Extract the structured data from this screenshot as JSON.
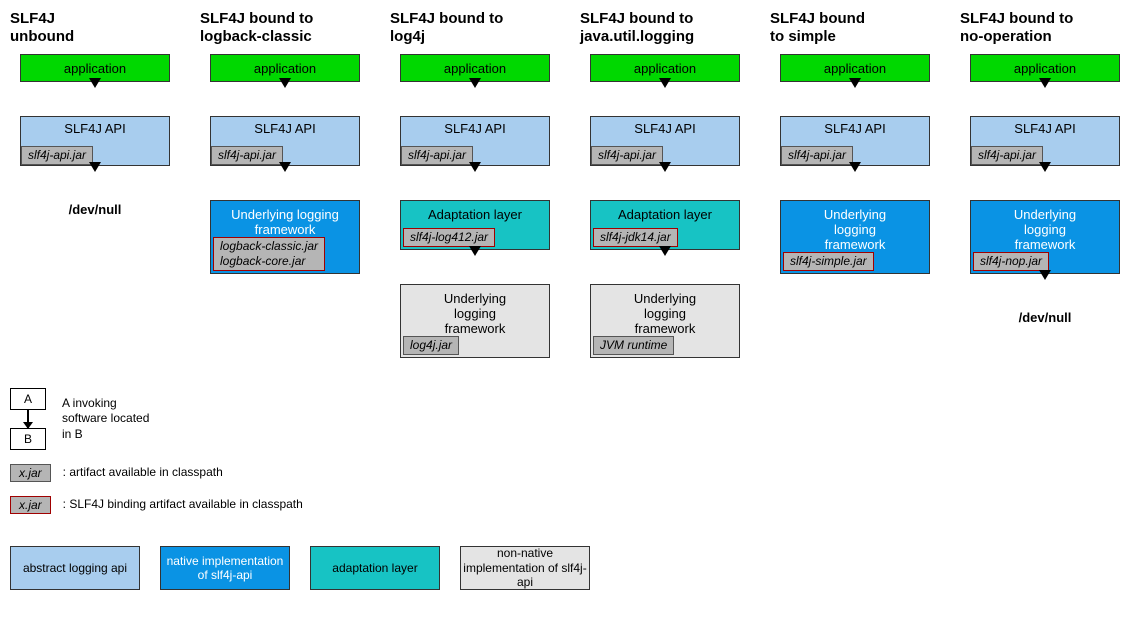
{
  "columns": [
    {
      "title": "SLF4J\nunbound",
      "nodes": [
        {
          "type": "app",
          "label": "application"
        },
        {
          "type": "arrow"
        },
        {
          "type": "api",
          "label": "SLF4J API",
          "jar": "slf4j-api.jar",
          "binding": false
        },
        {
          "type": "arrow"
        },
        {
          "type": "devnull",
          "label": "/dev/null"
        }
      ]
    },
    {
      "title": "SLF4J bound to\nlogback-classic",
      "nodes": [
        {
          "type": "app",
          "label": "application"
        },
        {
          "type": "arrow"
        },
        {
          "type": "api",
          "label": "SLF4J API",
          "jar": "slf4j-api.jar",
          "binding": false
        },
        {
          "type": "arrow"
        },
        {
          "type": "native",
          "label": "Underlying logging\nframework",
          "jar": "logback-classic.jar\nlogback-core.jar",
          "binding": true
        }
      ]
    },
    {
      "title": "SLF4J bound to\nlog4j",
      "nodes": [
        {
          "type": "app",
          "label": "application"
        },
        {
          "type": "arrow"
        },
        {
          "type": "api",
          "label": "SLF4J API",
          "jar": "slf4j-api.jar",
          "binding": false
        },
        {
          "type": "arrow"
        },
        {
          "type": "adapt",
          "label": "Adaptation layer",
          "jar": "slf4j-log412.jar",
          "binding": true
        },
        {
          "type": "arrow"
        },
        {
          "type": "nonnative",
          "label": "Underlying\nlogging\nframework",
          "jar": "log4j.jar",
          "binding": false
        }
      ]
    },
    {
      "title": "SLF4J bound to\njava.util.logging",
      "nodes": [
        {
          "type": "app",
          "label": "application"
        },
        {
          "type": "arrow"
        },
        {
          "type": "api",
          "label": "SLF4J API",
          "jar": "slf4j-api.jar",
          "binding": false
        },
        {
          "type": "arrow"
        },
        {
          "type": "adapt",
          "label": "Adaptation layer",
          "jar": "slf4j-jdk14.jar",
          "binding": true
        },
        {
          "type": "arrow"
        },
        {
          "type": "nonnative",
          "label": "Underlying\nlogging\nframework",
          "jar": "JVM runtime",
          "binding": false
        }
      ]
    },
    {
      "title": "SLF4J bound\nto simple",
      "nodes": [
        {
          "type": "app",
          "label": "application"
        },
        {
          "type": "arrow"
        },
        {
          "type": "api",
          "label": "SLF4J API",
          "jar": "slf4j-api.jar",
          "binding": false
        },
        {
          "type": "arrow"
        },
        {
          "type": "native",
          "label": "Underlying\nlogging\nframework",
          "jar": "slf4j-simple.jar",
          "binding": true
        }
      ]
    },
    {
      "title": "SLF4J bound to\nno-operation",
      "nodes": [
        {
          "type": "app",
          "label": "application"
        },
        {
          "type": "arrow"
        },
        {
          "type": "api",
          "label": "SLF4J API",
          "jar": "slf4j-api.jar",
          "binding": false
        },
        {
          "type": "arrow"
        },
        {
          "type": "native",
          "label": "Underlying\nlogging\nframework",
          "jar": "slf4j-nop.jar",
          "binding": true
        },
        {
          "type": "arrow"
        },
        {
          "type": "devnull",
          "label": "/dev/null"
        }
      ]
    }
  ],
  "legend": {
    "ab_text": "A invoking\nsoftware located\nin B",
    "jar_text": ": artifact available in classpath",
    "binding_text": ": SLF4J binding artifact available in classpath",
    "jar_sample": "x.jar",
    "a_label": "A",
    "b_label": "B"
  },
  "palette": {
    "api": "abstract\nlogging api",
    "native": "native implementation\nof slf4j-api",
    "adapt": "adaptation layer",
    "nonnative": "non-native\nimplementation\nof slf4j-api"
  },
  "colors": {
    "app": "#00d800",
    "api": "#a8cdee",
    "native": "#0a93e4",
    "adapt": "#17c3c4",
    "nonnative": "#e4e4e4",
    "jar": "#b5b5b5",
    "binding_border": "#a00000"
  }
}
